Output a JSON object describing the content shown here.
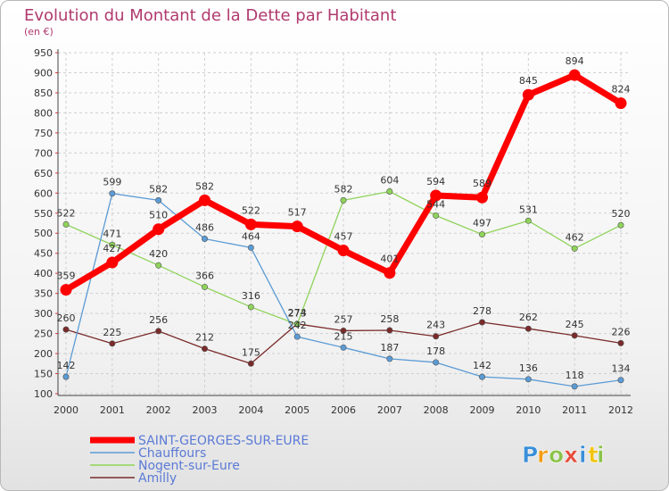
{
  "chart_data": {
    "type": "line",
    "title": "Evolution du Montant de la Dette par Habitant",
    "subtitle": "(en €)",
    "xlabel": "",
    "ylabel": "",
    "categories": [
      "2000",
      "2001",
      "2002",
      "2003",
      "2004",
      "2005",
      "2006",
      "2007",
      "2008",
      "2009",
      "2010",
      "2011",
      "2012"
    ],
    "ylim": [
      100,
      950
    ],
    "yticks": [
      100,
      150,
      200,
      250,
      300,
      350,
      400,
      450,
      500,
      550,
      600,
      650,
      700,
      750,
      800,
      850,
      900,
      950
    ],
    "grid": true,
    "legend_position": "bottom-left",
    "series": [
      {
        "name": "SAINT-GEORGES-SUR-EURE",
        "color": "#ff0000",
        "values": [
          359,
          427,
          510,
          582,
          522,
          517,
          457,
          401,
          594,
          589,
          845,
          894,
          824
        ]
      },
      {
        "name": "Chauffours",
        "color": "#5b9bd5",
        "values": [
          142,
          599,
          582,
          486,
          464,
          242,
          215,
          187,
          178,
          142,
          136,
          118,
          134
        ]
      },
      {
        "name": "Nogent-sur-Eure",
        "color": "#8fd35a",
        "values": [
          522,
          471,
          420,
          366,
          316,
          273,
          582,
          604,
          544,
          497,
          531,
          462,
          520
        ]
      },
      {
        "name": "Amilly",
        "color": "#7a2a2a",
        "values": [
          260,
          225,
          256,
          212,
          175,
          274,
          257,
          258,
          243,
          278,
          262,
          245,
          226
        ]
      }
    ]
  },
  "brand": {
    "letters": [
      "P",
      "r",
      "o",
      "x",
      "i",
      "t",
      "i"
    ],
    "colors": [
      "#3a8fd8",
      "#f39c12",
      "#8bc34a",
      "#e74c3c",
      "#3a8fd8",
      "#f1c40f",
      "#8bc34a"
    ]
  }
}
